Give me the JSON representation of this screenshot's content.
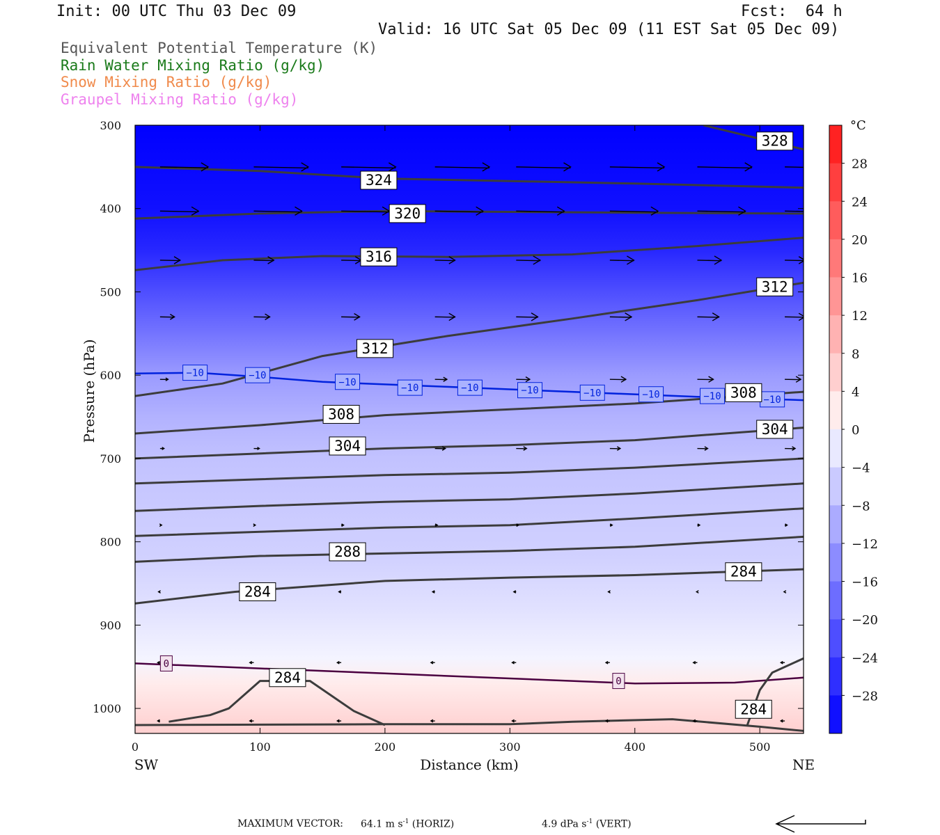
{
  "header": {
    "init": "Init: 00 UTC Thu 03 Dec 09",
    "fcst": "Fcst:  64 h",
    "valid": "Valid: 16 UTC Sat 05 Dec 09 (11 EST Sat 05 Dec 09)"
  },
  "legend": [
    {
      "text": "Equivalent Potential Temperature (K)",
      "color": "#555555"
    },
    {
      "text": "Rain Water Mixing Ratio (g/kg)",
      "color": "#1a7a1a"
    },
    {
      "text": "Snow Mixing Ratio (g/kg)",
      "color": "#f08a4b"
    },
    {
      "text": "Graupel Mixing Ratio (g/kg)",
      "color": "#ee82ee"
    }
  ],
  "footer": {
    "label": "MAXIMUM VECTOR:",
    "horiz_value": "64.1 m s",
    "horiz_exp": "-1",
    "horiz_tag": "(HORIZ)",
    "vert_value": "4.9 dPa s",
    "vert_exp": "-1",
    "vert_tag": "(VERT)"
  },
  "chart_data": {
    "type": "cross-section",
    "xlabel": "Distance (km)",
    "ylabel": "Pressure (hPa)",
    "xlim": [
      0,
      535
    ],
    "ylim": [
      300,
      1030
    ],
    "x_ticks": [
      0,
      100,
      200,
      300,
      400,
      500
    ],
    "y_ticks": [
      300,
      400,
      500,
      600,
      700,
      800,
      900,
      1000
    ],
    "x_end_labels": {
      "left": "SW",
      "right": "NE"
    },
    "colorbar": {
      "unit": "°C",
      "range": [
        -32,
        32
      ],
      "step": 4,
      "tick_labels": [
        28,
        24,
        20,
        16,
        12,
        8,
        4,
        0,
        -4,
        -8,
        -12,
        -16,
        -20,
        -24,
        -28
      ]
    },
    "temperature_fill_profile": [
      {
        "p": 300,
        "t": -32
      },
      {
        "p": 400,
        "t": -30
      },
      {
        "p": 450,
        "t": -27
      },
      {
        "p": 500,
        "t": -22
      },
      {
        "p": 550,
        "t": -17
      },
      {
        "p": 600,
        "t": -12
      },
      {
        "p": 650,
        "t": -9
      },
      {
        "p": 700,
        "t": -7
      },
      {
        "p": 760,
        "t": -6
      },
      {
        "p": 820,
        "t": -5
      },
      {
        "p": 880,
        "t": -3
      },
      {
        "p": 940,
        "t": -0.5
      },
      {
        "p": 970,
        "t": 2
      },
      {
        "p": 1000,
        "t": 4
      },
      {
        "p": 1030,
        "t": 6
      }
    ],
    "theta_e_contours": [
      {
        "label": "328",
        "points": [
          [
            455,
            300
          ],
          [
            535,
            329
          ]
        ]
      },
      {
        "label": "324",
        "points": [
          [
            0,
            350
          ],
          [
            100,
            355
          ],
          [
            200,
            364
          ],
          [
            300,
            367
          ],
          [
            400,
            370
          ],
          [
            535,
            375
          ]
        ]
      },
      {
        "label": "320",
        "points": [
          [
            0,
            412
          ],
          [
            100,
            406
          ],
          [
            200,
            403
          ],
          [
            300,
            404
          ],
          [
            400,
            405
          ],
          [
            535,
            406
          ]
        ]
      },
      {
        "label": "316",
        "points": [
          [
            0,
            474
          ],
          [
            70,
            462
          ],
          [
            150,
            457
          ],
          [
            250,
            458
          ],
          [
            350,
            455
          ],
          [
            450,
            445
          ],
          [
            535,
            435
          ]
        ]
      },
      {
        "label": "312",
        "points": [
          [
            0,
            625
          ],
          [
            70,
            610
          ],
          [
            150,
            577
          ],
          [
            250,
            553
          ],
          [
            350,
            532
          ],
          [
            450,
            510
          ],
          [
            535,
            489
          ]
        ]
      },
      {
        "label": "308",
        "points": [
          [
            0,
            670
          ],
          [
            100,
            660
          ],
          [
            200,
            648
          ],
          [
            300,
            641
          ],
          [
            400,
            634
          ],
          [
            535,
            620
          ]
        ]
      },
      {
        "label": "304",
        "points": [
          [
            0,
            700
          ],
          [
            100,
            694
          ],
          [
            200,
            688
          ],
          [
            300,
            684
          ],
          [
            400,
            678
          ],
          [
            535,
            663
          ]
        ]
      },
      {
        "label": "",
        "points": [
          [
            0,
            730
          ],
          [
            100,
            725
          ],
          [
            200,
            720
          ],
          [
            300,
            717
          ],
          [
            400,
            711
          ],
          [
            535,
            700
          ]
        ]
      },
      {
        "label": "",
        "points": [
          [
            0,
            763
          ],
          [
            100,
            757
          ],
          [
            200,
            752
          ],
          [
            300,
            749
          ],
          [
            400,
            742
          ],
          [
            535,
            730
          ]
        ]
      },
      {
        "label": "",
        "points": [
          [
            0,
            793
          ],
          [
            100,
            788
          ],
          [
            200,
            783
          ],
          [
            300,
            780
          ],
          [
            400,
            772
          ],
          [
            535,
            760
          ]
        ]
      },
      {
        "label": "288",
        "points": [
          [
            0,
            824
          ],
          [
            100,
            817
          ],
          [
            200,
            814
          ],
          [
            300,
            811
          ],
          [
            400,
            806
          ],
          [
            535,
            794
          ]
        ]
      },
      {
        "label": "284",
        "points": [
          [
            0,
            874
          ],
          [
            80,
            860
          ],
          [
            200,
            847
          ],
          [
            300,
            843
          ],
          [
            400,
            840
          ],
          [
            535,
            833
          ]
        ]
      },
      {
        "label": "284",
        "points": [
          [
            27,
            1016
          ],
          [
            60,
            1008
          ],
          [
            75,
            1000
          ],
          [
            100,
            967
          ],
          [
            140,
            967
          ],
          [
            175,
            1003
          ],
          [
            200,
            1020
          ]
        ]
      },
      {
        "label": "284",
        "points": [
          [
            490,
            1020
          ],
          [
            500,
            978
          ],
          [
            510,
            957
          ],
          [
            535,
            940
          ]
        ]
      },
      {
        "label": "",
        "points": [
          [
            0,
            1020
          ],
          [
            200,
            1019
          ],
          [
            300,
            1019
          ],
          [
            350,
            1016
          ],
          [
            430,
            1013
          ],
          [
            500,
            1022
          ],
          [
            535,
            1027
          ]
        ]
      }
    ],
    "isotherm_contours": [
      {
        "value": "-10",
        "color": "#0022dd",
        "points": [
          [
            0,
            598
          ],
          [
            50,
            597
          ],
          [
            100,
            602
          ],
          [
            150,
            608
          ],
          [
            250,
            614
          ],
          [
            350,
            620
          ],
          [
            450,
            626
          ],
          [
            535,
            630
          ]
        ]
      },
      {
        "value": "0",
        "color": "#4a0040",
        "points": [
          [
            0,
            946
          ],
          [
            100,
            952
          ],
          [
            200,
            958
          ],
          [
            300,
            964
          ],
          [
            400,
            970
          ],
          [
            480,
            969
          ],
          [
            535,
            963
          ]
        ]
      }
    ],
    "isotherm_labels": [
      {
        "value": "-10",
        "x": 48,
        "p": 597
      },
      {
        "value": "-10",
        "x": 98,
        "p": 600
      },
      {
        "value": "-10",
        "x": 170,
        "p": 608
      },
      {
        "value": "-10",
        "x": 220,
        "p": 615
      },
      {
        "value": "-10",
        "x": 268,
        "p": 615
      },
      {
        "value": "-10",
        "x": 316,
        "p": 618
      },
      {
        "value": "-10",
        "x": 366,
        "p": 621
      },
      {
        "value": "-10",
        "x": 413,
        "p": 623
      },
      {
        "value": "-10",
        "x": 462,
        "p": 625
      },
      {
        "value": "-10",
        "x": 510,
        "p": 629
      },
      {
        "value": "0",
        "x": 25,
        "p": 946
      },
      {
        "value": "0",
        "x": 387,
        "p": 967
      }
    ],
    "theta_e_labels": [
      {
        "value": "328",
        "x": 512,
        "p": 319
      },
      {
        "value": "324",
        "x": 195,
        "p": 366
      },
      {
        "value": "320",
        "x": 218,
        "p": 406
      },
      {
        "value": "316",
        "x": 195,
        "p": 458
      },
      {
        "value": "312",
        "x": 512,
        "p": 494
      },
      {
        "value": "312",
        "x": 192,
        "p": 568
      },
      {
        "value": "308",
        "x": 487,
        "p": 621
      },
      {
        "value": "308",
        "x": 165,
        "p": 647
      },
      {
        "value": "304",
        "x": 512,
        "p": 665
      },
      {
        "value": "304",
        "x": 170,
        "p": 685
      },
      {
        "value": "288",
        "x": 170,
        "p": 812
      },
      {
        "value": "284",
        "x": 487,
        "p": 836
      },
      {
        "value": "284",
        "x": 98,
        "p": 860
      },
      {
        "value": "284",
        "x": 122,
        "p": 963
      },
      {
        "value": "284",
        "x": 495,
        "p": 1001
      }
    ],
    "wind_vectors": {
      "x_positions": [
        20,
        95,
        165,
        240,
        305,
        380,
        450,
        520
      ],
      "rows": [
        {
          "p": 350,
          "u": [
            60,
            68,
            68,
            68,
            68,
            68,
            68,
            68
          ]
        },
        {
          "p": 403,
          "u": [
            48,
            60,
            60,
            60,
            60,
            60,
            60,
            60
          ]
        },
        {
          "p": 462,
          "u": [
            25,
            25,
            25,
            25,
            30,
            30,
            30,
            25
          ]
        },
        {
          "p": 530,
          "u": [
            18,
            20,
            23,
            25,
            27,
            27,
            27,
            25
          ]
        },
        {
          "p": 605,
          "u": [
            10,
            12,
            15,
            15,
            17,
            20,
            20,
            20
          ]
        },
        {
          "p": 688,
          "u": [
            5,
            7,
            10,
            13,
            13,
            13,
            13,
            13
          ]
        },
        {
          "p": 780,
          "u": [
            2,
            2,
            3,
            3,
            3,
            3,
            3,
            3
          ]
        },
        {
          "p": 860,
          "u": [
            -2,
            -3,
            -3,
            -3,
            -3,
            -2,
            -1,
            -1
          ]
        },
        {
          "p": 945,
          "u": [
            -3,
            -5,
            -5,
            -5,
            -5,
            -5,
            -5,
            -5
          ]
        },
        {
          "p": 1015,
          "u": [
            -3,
            -5,
            -5,
            -5,
            -5,
            -5,
            -5,
            -5
          ]
        }
      ]
    }
  }
}
